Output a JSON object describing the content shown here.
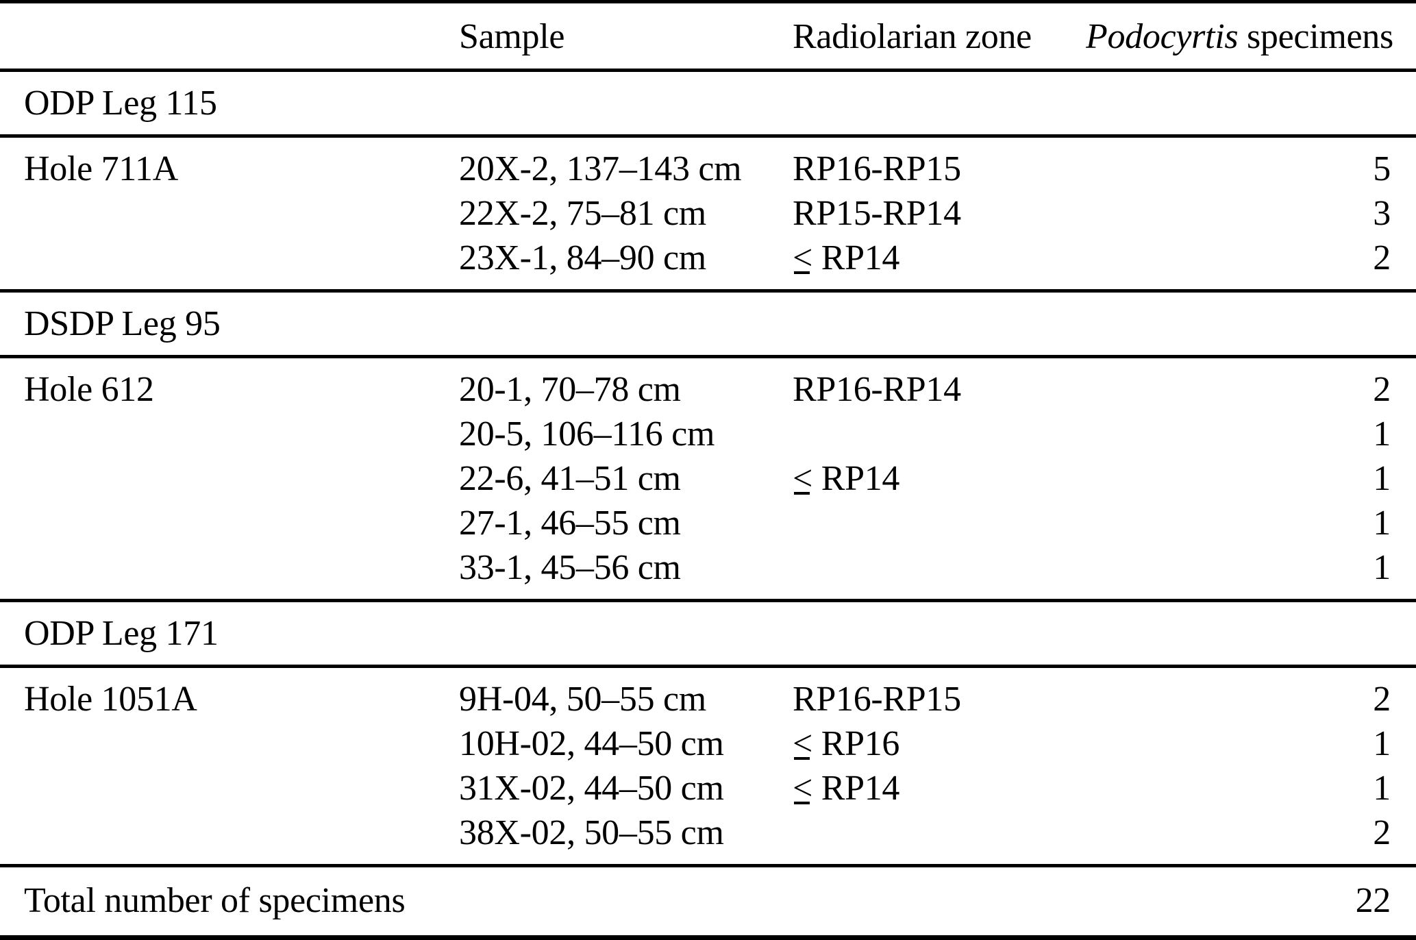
{
  "page": {
    "background": "#ffffff",
    "text_color": "#000000"
  },
  "table": {
    "header": {
      "col1": "",
      "col2": "Sample",
      "col3": "Radiolarian zone",
      "col4_italic": "Podocyrtis",
      "col4_rest": "specimens"
    },
    "sections": [
      {
        "leg": "ODP Leg 115",
        "hole": "Hole 711A",
        "rows": [
          {
            "sample": "20X-2, 137–143 cm",
            "zone": "RP16-RP15",
            "count": "5"
          },
          {
            "sample": "22X-2, 75–81 cm",
            "zone": "RP15-RP14",
            "count": "3"
          },
          {
            "sample": "23X-1, 84–90 cm",
            "zone": "≤ RP14",
            "count": "2"
          }
        ]
      },
      {
        "leg": "DSDP Leg 95",
        "hole": "Hole 612",
        "rows": [
          {
            "sample": "20-1, 70–78 cm",
            "zone": "RP16-RP14",
            "count": "2"
          },
          {
            "sample": "20-5, 106–116 cm",
            "zone": "",
            "count": "1"
          },
          {
            "sample": "22-6, 41–51 cm",
            "zone": "≤ RP14",
            "count": "1"
          },
          {
            "sample": "27-1, 46–55 cm",
            "zone": "",
            "count": "1"
          },
          {
            "sample": "33-1, 45–56 cm",
            "zone": "",
            "count": "1"
          }
        ]
      },
      {
        "leg": "ODP Leg 171",
        "hole": "Hole 1051A",
        "rows": [
          {
            "sample": "9H-04, 50–55 cm",
            "zone": "RP16-RP15",
            "count": "2"
          },
          {
            "sample": "10H-02, 44–50 cm",
            "zone": "≤ RP16",
            "count": "1"
          },
          {
            "sample": "31X-02, 44–50 cm",
            "zone": "≤ RP14",
            "count": "1"
          },
          {
            "sample": "38X-02, 50–55 cm",
            "zone": "",
            "count": "2"
          }
        ]
      }
    ],
    "total": {
      "label": "Total number of specimens",
      "value": "22"
    }
  }
}
